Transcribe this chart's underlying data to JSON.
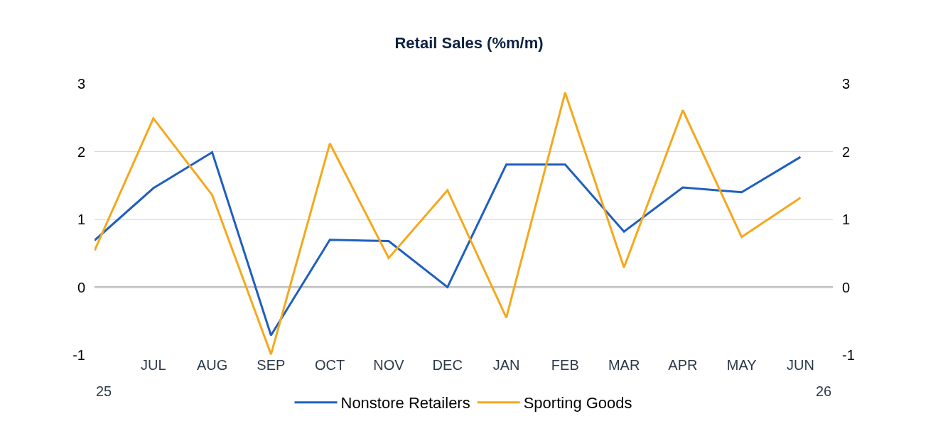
{
  "chart_data": {
    "type": "line",
    "title": "Retail Sales (%m/m)",
    "categories": [
      null,
      "JUL",
      "AUG",
      "SEP",
      "OCT",
      "NOV",
      "DEC",
      "JAN",
      "FEB",
      "MAR",
      "APR",
      "MAY",
      "JUN"
    ],
    "series": [
      {
        "name": "Nonstore Retailers",
        "color": "#1f5fbf",
        "values": [
          0.69,
          1.46,
          1.99,
          -0.71,
          0.7,
          0.68,
          0.0,
          1.81,
          1.81,
          0.82,
          1.47,
          1.4,
          1.92
        ]
      },
      {
        "name": "Sporting Goods",
        "color": "#f5a81c",
        "values": [
          0.54,
          2.49,
          1.36,
          -0.99,
          2.12,
          0.43,
          1.43,
          -0.45,
          2.87,
          0.29,
          2.61,
          0.74,
          1.32
        ]
      }
    ],
    "ylim": [
      -1,
      3
    ],
    "yticks": [
      -1,
      0,
      1,
      2,
      3
    ],
    "y2lim": [
      -1,
      3
    ],
    "y2ticks": [
      -1,
      0,
      1,
      2,
      3
    ],
    "ref_lines": [
      {
        "axis": "y",
        "value": 0,
        "color": "#000000"
      }
    ],
    "annotations": [
      "25",
      "26"
    ],
    "grid": "y",
    "legend": "bottom",
    "marker": "none",
    "line_style": "solid"
  }
}
